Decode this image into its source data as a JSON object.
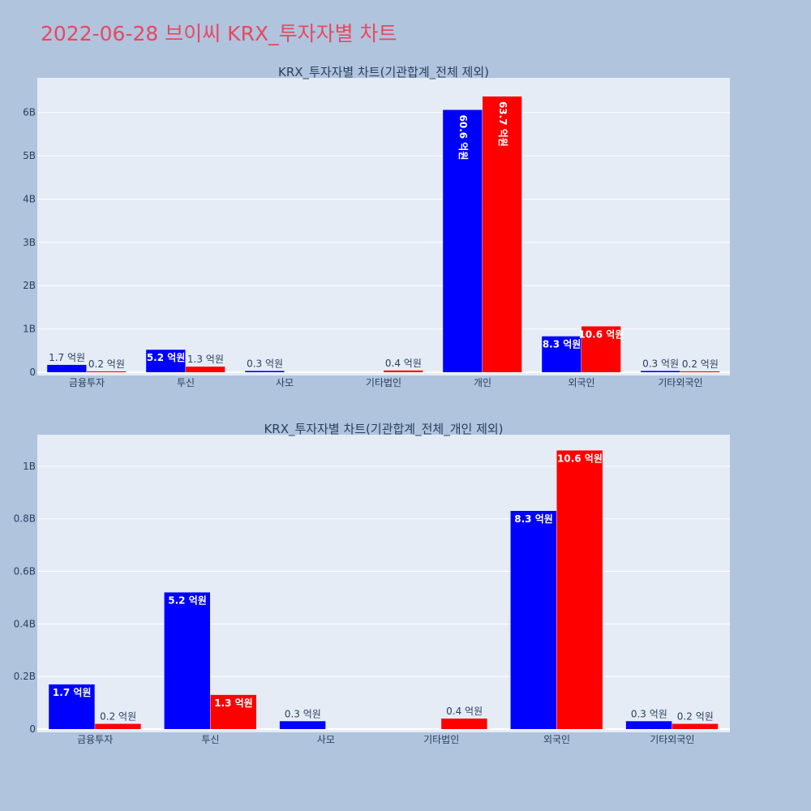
{
  "page": {
    "title": "2022-06-28 브이씨 KRX_투자자별 차트"
  },
  "colors": {
    "paper": "#b0c4de",
    "plot_bg": "#e5ecf6",
    "buy": "#0000ff",
    "sell": "#ff0000",
    "title": "#e8485f"
  },
  "chart_data": [
    {
      "type": "bar",
      "title": "KRX_투자자별 차트(기관합계_전체 제외)",
      "categories": [
        "금융투자",
        "투신",
        "사모",
        "기타법인",
        "개인",
        "외국인",
        "기타외국인"
      ],
      "ylim": [
        0,
        6.8
      ],
      "ytick_values": [
        0,
        1,
        2,
        3,
        4,
        5,
        6
      ],
      "ytick_labels": [
        "0",
        "1B",
        "2B",
        "3B",
        "4B",
        "5B",
        "6B"
      ],
      "grid": true,
      "series": [
        {
          "values": [
            0.17,
            0.52,
            0.03,
            0,
            6.06,
            0.83,
            0.03
          ],
          "labels": [
            "1.7 억원",
            "5.2 억원",
            "0.3 억원",
            "",
            "60.6 억원",
            "8.3 억원",
            "0.3 억원"
          ]
        },
        {
          "values": [
            0.02,
            0.13,
            0,
            0.04,
            6.37,
            1.06,
            0.02
          ],
          "labels": [
            "0.2 억원",
            "1.3 억원",
            "",
            "0.4 억원",
            "63.7 억원",
            "10.6 억원",
            "0.2 억원"
          ]
        }
      ]
    },
    {
      "type": "bar",
      "title": "KRX_투자자별 차트(기관합계_전체_개인 제외)",
      "categories": [
        "금융투자",
        "투신",
        "사모",
        "기타법인",
        "외국인",
        "기타외국인"
      ],
      "ylim": [
        0,
        1.12
      ],
      "ytick_values": [
        0,
        0.2,
        0.4,
        0.6,
        0.8,
        1.0
      ],
      "ytick_labels": [
        "0",
        "0.2B",
        "0.4B",
        "0.6B",
        "0.8B",
        "1B"
      ],
      "grid": true,
      "series": [
        {
          "values": [
            0.17,
            0.52,
            0.03,
            0,
            0.83,
            0.03
          ],
          "labels": [
            "1.7 억원",
            "5.2 억원",
            "0.3 억원",
            "",
            "8.3 억원",
            "0.3 억원"
          ]
        },
        {
          "values": [
            0.02,
            0.13,
            0,
            0.04,
            1.06,
            0.02
          ],
          "labels": [
            "0.2 억원",
            "1.3 억원",
            "",
            "0.4 억원",
            "10.6 억원",
            "0.2 억원"
          ]
        }
      ]
    }
  ]
}
